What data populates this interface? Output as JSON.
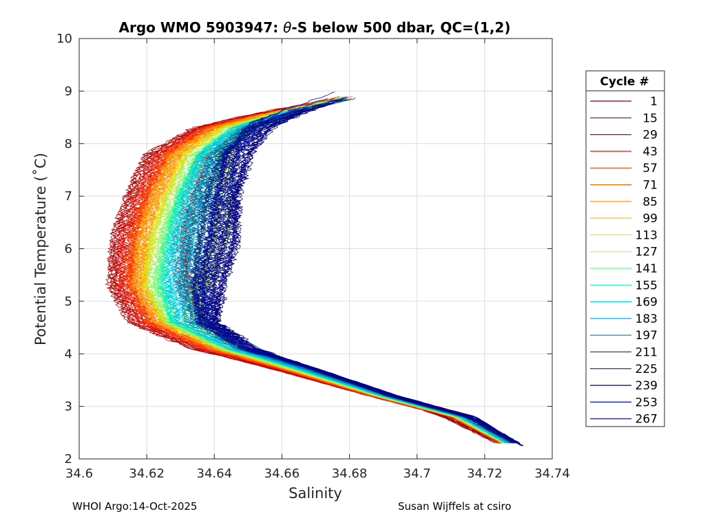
{
  "chart_data": {
    "type": "line",
    "title_prefix": "Argo WMO 5903947: ",
    "title_theta": "θ",
    "title_suffix": "-S below 500 dbar,  QC=(1,2)",
    "xlabel": "Salinity",
    "ylabel": "Potential Temperature (˚C)",
    "xlim": [
      34.6,
      34.74
    ],
    "ylim": [
      2,
      10
    ],
    "xticks": [
      "34.6",
      "34.62",
      "34.64",
      "34.66",
      "34.68",
      "34.7",
      "34.72",
      "34.74"
    ],
    "yticks": [
      "2",
      "3",
      "4",
      "5",
      "6",
      "7",
      "8",
      "9",
      "10"
    ],
    "grid": true,
    "legend_title": "Cycle #",
    "legend_position": "outside-right",
    "series": [
      {
        "name": "1",
        "color": "#800000",
        "S": [
          34.682,
          34.662,
          34.648,
          34.637,
          34.633,
          34.63,
          34.631,
          34.637,
          34.648,
          34.664,
          34.686,
          34.708,
          34.724
        ],
        "T": [
          8.9,
          8.6,
          8.3,
          7.8,
          7.0,
          6.2,
          5.3,
          4.6,
          4.1,
          3.7,
          3.3,
          2.8,
          2.3
        ]
      },
      {
        "name": "15",
        "color": "#a00000",
        "S": [
          34.68,
          34.655,
          34.635,
          34.621,
          34.615,
          34.611,
          34.61,
          34.616,
          34.634,
          34.658,
          34.686,
          34.71,
          34.725
        ],
        "T": [
          8.9,
          8.6,
          8.3,
          7.8,
          7.0,
          6.2,
          5.3,
          4.6,
          4.1,
          3.7,
          3.2,
          2.8,
          2.3
        ]
      },
      {
        "name": "29",
        "color": "#c80000",
        "S": [
          34.68,
          34.656,
          34.636,
          34.623,
          34.617,
          34.613,
          34.612,
          34.618,
          34.636,
          34.659,
          34.686,
          34.71,
          34.725
        ],
        "T": [
          8.9,
          8.6,
          8.3,
          7.8,
          7.0,
          6.2,
          5.3,
          4.6,
          4.1,
          3.7,
          3.2,
          2.8,
          2.3
        ]
      },
      {
        "name": "43",
        "color": "#e81000",
        "S": [
          34.68,
          34.657,
          34.638,
          34.625,
          34.619,
          34.615,
          34.614,
          34.62,
          34.638,
          34.66,
          34.687,
          34.711,
          34.725
        ],
        "T": [
          8.9,
          8.6,
          8.3,
          7.8,
          7.0,
          6.2,
          5.3,
          4.6,
          4.1,
          3.7,
          3.2,
          2.8,
          2.3
        ]
      },
      {
        "name": "57",
        "color": "#ff3000",
        "S": [
          34.68,
          34.658,
          34.639,
          34.627,
          34.621,
          34.617,
          34.616,
          34.622,
          34.639,
          34.661,
          34.687,
          34.711,
          34.725
        ],
        "T": [
          8.9,
          8.6,
          8.3,
          7.8,
          7.0,
          6.2,
          5.3,
          4.6,
          4.1,
          3.7,
          3.2,
          2.8,
          2.3
        ]
      },
      {
        "name": "71",
        "color": "#ff6000",
        "S": [
          34.68,
          34.658,
          34.64,
          34.628,
          34.622,
          34.618,
          34.617,
          34.623,
          34.64,
          34.662,
          34.688,
          34.711,
          34.726
        ],
        "T": [
          8.9,
          8.6,
          8.3,
          7.8,
          7.0,
          6.2,
          5.3,
          4.6,
          4.1,
          3.7,
          3.2,
          2.8,
          2.3
        ]
      },
      {
        "name": "85",
        "color": "#ff9000",
        "S": [
          34.68,
          34.659,
          34.641,
          34.629,
          34.623,
          34.619,
          34.618,
          34.624,
          34.641,
          34.662,
          34.688,
          34.711,
          34.726
        ],
        "T": [
          8.9,
          8.6,
          8.3,
          7.8,
          7.0,
          6.2,
          5.3,
          4.6,
          4.1,
          3.7,
          3.2,
          2.8,
          2.3
        ]
      },
      {
        "name": "99",
        "color": "#ffc000",
        "S": [
          34.68,
          34.66,
          34.643,
          34.632,
          34.626,
          34.622,
          34.62,
          34.626,
          34.642,
          34.663,
          34.688,
          34.712,
          34.726
        ],
        "T": [
          8.9,
          8.6,
          8.3,
          7.8,
          7.0,
          6.2,
          5.3,
          4.6,
          4.1,
          3.7,
          3.2,
          2.8,
          2.3
        ]
      },
      {
        "name": "113",
        "color": "#e8f000",
        "S": [
          34.681,
          34.663,
          34.649,
          34.643,
          34.643,
          34.642,
          34.636,
          34.632,
          34.643,
          34.664,
          34.689,
          34.712,
          34.726
        ],
        "T": [
          8.9,
          8.6,
          8.3,
          7.8,
          7.0,
          6.2,
          5.3,
          4.6,
          4.1,
          3.7,
          3.2,
          2.8,
          2.3
        ]
      },
      {
        "name": "127",
        "color": "#b0ff40",
        "S": [
          34.681,
          34.661,
          34.645,
          34.634,
          34.628,
          34.624,
          34.622,
          34.627,
          34.643,
          34.664,
          34.689,
          34.712,
          34.726
        ],
        "T": [
          8.9,
          8.6,
          8.3,
          7.8,
          7.0,
          6.2,
          5.3,
          4.6,
          4.1,
          3.7,
          3.2,
          2.8,
          2.3
        ]
      },
      {
        "name": "141",
        "color": "#60ff80",
        "S": [
          34.681,
          34.661,
          34.646,
          34.636,
          34.63,
          34.626,
          34.624,
          34.628,
          34.644,
          34.665,
          34.689,
          34.713,
          34.727
        ],
        "T": [
          8.9,
          8.6,
          8.3,
          7.8,
          7.0,
          6.2,
          5.3,
          4.6,
          4.1,
          3.7,
          3.2,
          2.8,
          2.3
        ]
      },
      {
        "name": "155",
        "color": "#20f0b0",
        "S": [
          34.681,
          34.662,
          34.647,
          34.637,
          34.631,
          34.628,
          34.626,
          34.629,
          34.645,
          34.665,
          34.69,
          34.713,
          34.727
        ],
        "T": [
          8.9,
          8.6,
          8.3,
          7.8,
          7.0,
          6.2,
          5.3,
          4.6,
          4.1,
          3.7,
          3.2,
          2.8,
          2.3
        ]
      },
      {
        "name": "169",
        "color": "#00e0e0",
        "S": [
          34.681,
          34.662,
          34.648,
          34.638,
          34.633,
          34.63,
          34.628,
          34.631,
          34.646,
          34.666,
          34.69,
          34.713,
          34.727
        ],
        "T": [
          8.9,
          8.6,
          8.3,
          7.8,
          7.0,
          6.2,
          5.3,
          4.6,
          4.1,
          3.7,
          3.2,
          2.8,
          2.3
        ]
      },
      {
        "name": "183",
        "color": "#00b0ff",
        "S": [
          34.681,
          34.663,
          34.649,
          34.64,
          34.635,
          34.632,
          34.63,
          34.633,
          34.647,
          34.667,
          34.691,
          34.714,
          34.728
        ],
        "T": [
          8.9,
          8.6,
          8.3,
          7.8,
          7.0,
          6.2,
          5.3,
          4.6,
          4.1,
          3.7,
          3.2,
          2.8,
          2.3
        ]
      },
      {
        "name": "197",
        "color": "#0080a0",
        "S": [
          34.681,
          34.664,
          34.65,
          34.641,
          34.637,
          34.634,
          34.632,
          34.635,
          34.648,
          34.668,
          34.691,
          34.714,
          34.728
        ],
        "T": [
          8.9,
          8.6,
          8.3,
          7.8,
          7.0,
          6.2,
          5.3,
          4.6,
          4.1,
          3.7,
          3.2,
          2.8,
          2.3
        ]
      },
      {
        "name": "211",
        "color": "#005090",
        "S": [
          34.681,
          34.664,
          34.651,
          34.643,
          34.639,
          34.637,
          34.635,
          34.637,
          34.649,
          34.669,
          34.692,
          34.715,
          34.729
        ],
        "T": [
          8.9,
          8.6,
          8.3,
          7.8,
          7.0,
          6.2,
          5.3,
          4.6,
          4.1,
          3.7,
          3.2,
          2.8,
          2.3
        ]
      },
      {
        "name": "225",
        "color": "#002070",
        "S": [
          34.68,
          34.665,
          34.653,
          34.645,
          34.643,
          34.641,
          34.638,
          34.639,
          34.65,
          34.67,
          34.692,
          34.715,
          34.729
        ],
        "T": [
          8.9,
          8.6,
          8.3,
          7.8,
          7.0,
          6.2,
          5.3,
          4.6,
          4.1,
          3.7,
          3.2,
          2.8,
          2.3
        ]
      },
      {
        "name": "239",
        "color": "#000060",
        "S": [
          34.68,
          34.666,
          34.655,
          34.648,
          34.646,
          34.644,
          34.64,
          34.64,
          34.651,
          34.67,
          34.693,
          34.716,
          34.73
        ],
        "T": [
          8.9,
          8.6,
          8.3,
          7.8,
          7.0,
          6.2,
          5.3,
          4.6,
          4.1,
          3.7,
          3.2,
          2.8,
          2.3
        ]
      },
      {
        "name": "253",
        "color": "#0010c0",
        "S": [
          34.679,
          34.665,
          34.653,
          34.645,
          34.642,
          34.64,
          34.636,
          34.637,
          34.65,
          34.67,
          34.693,
          34.716,
          34.73
        ],
        "T": [
          9.0,
          8.7,
          8.4,
          7.8,
          7.0,
          6.2,
          5.3,
          4.6,
          4.1,
          3.7,
          3.2,
          2.8,
          2.3
        ]
      },
      {
        "name": "267",
        "color": "#000080",
        "S": [
          34.68,
          34.666,
          34.656,
          34.65,
          34.646,
          34.646,
          34.642,
          34.64,
          34.652,
          34.671,
          34.694,
          34.717,
          34.731
        ],
        "T": [
          8.9,
          8.6,
          8.3,
          7.8,
          7.0,
          6.2,
          5.3,
          4.6,
          4.1,
          3.7,
          3.2,
          2.8,
          2.25
        ]
      }
    ]
  },
  "footer": {
    "left": "WHOI Argo:14-Oct-2025",
    "right": "Susan Wijffels at csiro"
  }
}
